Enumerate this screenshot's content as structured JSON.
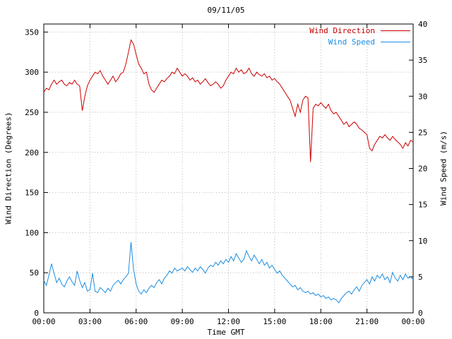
{
  "chart_data": {
    "type": "line",
    "title": "09/11/05",
    "xlabel": "Time GMT",
    "ylabel_left": "Wind Direction (Degrees)",
    "ylabel_right": "Wind Speed (m/s)",
    "grid": true,
    "legend_position": "top-right",
    "x_minutes_interval": 10,
    "x_range_minutes": [
      0,
      1440
    ],
    "xtick_interval_minutes": 180,
    "xtick_labels": [
      "00:00",
      "03:00",
      "06:00",
      "09:00",
      "12:00",
      "15:00",
      "18:00",
      "21:00",
      "00:00"
    ],
    "y_left": {
      "lim": [
        0,
        360
      ],
      "ticks": [
        0,
        50,
        100,
        150,
        200,
        250,
        300,
        350
      ]
    },
    "y_right": {
      "lim": [
        0,
        40
      ],
      "ticks": [
        0,
        5,
        10,
        15,
        20,
        25,
        30,
        35,
        40
      ]
    },
    "grid_color": "#b8b8b8",
    "border_color": "#000000",
    "series": [
      {
        "name": "Wind Direction",
        "axis": "left",
        "color": "#cc0000",
        "values": [
          275,
          280,
          278,
          285,
          290,
          285,
          288,
          290,
          285,
          283,
          287,
          285,
          290,
          285,
          283,
          252,
          270,
          283,
          290,
          295,
          300,
          298,
          302,
          295,
          290,
          285,
          290,
          295,
          288,
          292,
          298,
          300,
          310,
          325,
          340,
          335,
          322,
          310,
          305,
          298,
          300,
          285,
          278,
          275,
          280,
          285,
          290,
          288,
          292,
          295,
          300,
          298,
          305,
          300,
          295,
          298,
          295,
          290,
          293,
          288,
          290,
          285,
          288,
          292,
          287,
          283,
          285,
          288,
          285,
          280,
          283,
          290,
          295,
          300,
          298,
          305,
          300,
          303,
          298,
          300,
          305,
          298,
          295,
          300,
          297,
          295,
          298,
          293,
          295,
          290,
          292,
          288,
          285,
          280,
          275,
          270,
          265,
          255,
          245,
          260,
          250,
          265,
          270,
          268,
          188,
          255,
          260,
          258,
          262,
          258,
          255,
          260,
          252,
          248,
          250,
          245,
          240,
          235,
          238,
          232,
          235,
          238,
          235,
          230,
          228,
          225,
          222,
          205,
          202,
          210,
          215,
          220,
          218,
          222,
          218,
          215,
          220,
          216,
          213,
          210,
          205,
          212,
          208,
          215,
          213
        ]
      },
      {
        "name": "Wind Speed",
        "axis": "right",
        "color": "#1c8de0",
        "values": [
          4.5,
          3.8,
          5.2,
          6.8,
          5.5,
          4.2,
          4.8,
          4.0,
          3.6,
          4.4,
          5.0,
          4.3,
          3.8,
          5.8,
          4.5,
          3.5,
          4.2,
          3.0,
          3.2,
          5.5,
          3.0,
          2.8,
          3.5,
          3.2,
          2.8,
          3.4,
          3.0,
          3.8,
          4.2,
          4.5,
          4.0,
          4.6,
          5.0,
          5.5,
          9.8,
          6.0,
          4.0,
          3.0,
          2.6,
          3.2,
          2.8,
          3.4,
          3.8,
          3.5,
          4.2,
          4.6,
          4.0,
          4.8,
          5.2,
          5.8,
          5.5,
          6.2,
          5.8,
          6.0,
          6.2,
          5.8,
          6.4,
          6.0,
          5.6,
          6.2,
          5.8,
          6.4,
          6.0,
          5.5,
          6.2,
          6.6,
          6.4,
          7.0,
          6.6,
          7.2,
          6.8,
          7.4,
          7.0,
          7.8,
          7.2,
          8.2,
          7.6,
          7.0,
          7.4,
          8.6,
          7.8,
          7.2,
          8.0,
          7.4,
          6.8,
          7.4,
          6.6,
          7.0,
          6.2,
          6.6,
          6.0,
          5.5,
          5.8,
          5.2,
          4.8,
          4.4,
          4.0,
          3.6,
          3.8,
          3.2,
          3.5,
          3.0,
          2.8,
          3.0,
          2.6,
          2.8,
          2.4,
          2.6,
          2.2,
          2.4,
          2.0,
          2.2,
          1.8,
          2.0,
          1.8,
          1.4,
          2.0,
          2.4,
          2.8,
          3.0,
          2.6,
          3.2,
          3.6,
          3.0,
          3.8,
          4.2,
          4.6,
          4.0,
          5.0,
          4.4,
          5.2,
          4.8,
          5.4,
          4.6,
          5.0,
          4.2,
          5.6,
          4.8,
          4.4,
          5.2,
          4.6,
          5.4,
          4.8,
          5.0,
          4.6
        ]
      }
    ]
  }
}
